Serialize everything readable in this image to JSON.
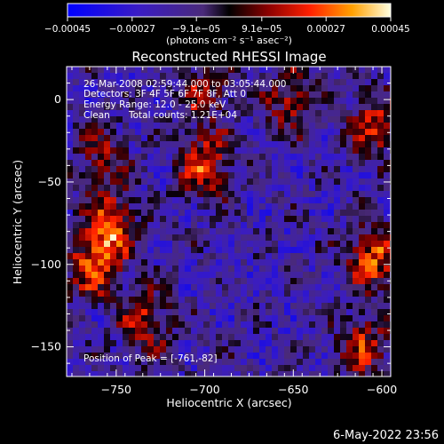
{
  "chart_data": {
    "type": "heatmap",
    "title": "Reconstructed RHESSI Image",
    "xlabel": "Heliocentric X (arcsec)",
    "ylabel": "Heliocentric Y (arcsec)",
    "xlim": [
      -778,
      -595
    ],
    "ylim": [
      -168,
      20
    ],
    "x_ticks": [
      -750,
      -700,
      -650,
      -600
    ],
    "x_tick_labels": [
      "−750",
      "−700",
      "−650",
      "−600"
    ],
    "y_ticks": [
      0,
      -50,
      -100,
      -150
    ],
    "y_tick_labels": [
      "0",
      "−50",
      "−100",
      "−150"
    ],
    "colorbar": {
      "range": [
        -0.00045,
        0.00045
      ],
      "ticks": [
        -0.00045,
        -0.00027,
        -9.1e-05,
        9.1e-05,
        0.00027,
        0.00045
      ],
      "tick_labels": [
        "−0.00045",
        "−0.00027",
        "−9.1e−05",
        "9.1e−05",
        "0.00027",
        "0.00045"
      ],
      "unit_label": "(photons cm⁻² s⁻¹ asec⁻²)"
    },
    "annotations": {
      "time_range": "26-Mar-2008 02:59:44.000 to 03:05:44.000",
      "detectors": "Detectors: 3F 4F 5F 6F 7F 8F, Att 0",
      "energy": "Energy Range: 12.0 - 25.0 keV",
      "method": "Clean",
      "counts": "Total counts: 1.21E+04",
      "peak": "Position of Peak = [-761,-82]"
    },
    "sources": [
      {
        "x": -753,
        "y": -78,
        "amplitude": 0.00042
      },
      {
        "x": -764,
        "y": -102,
        "amplitude": 0.00035
      },
      {
        "x": -700,
        "y": -40,
        "amplitude": 0.00038
      },
      {
        "x": -757,
        "y": -36,
        "amplitude": 0.00025
      },
      {
        "x": -733,
        "y": -135,
        "amplitude": 0.0003
      },
      {
        "x": -605,
        "y": -95,
        "amplitude": 0.0004
      },
      {
        "x": -610,
        "y": -150,
        "amplitude": 0.0003
      },
      {
        "x": -605,
        "y": -15,
        "amplitude": 0.00033
      },
      {
        "x": -652,
        "y": 0,
        "amplitude": 0.00028
      },
      {
        "x": -700,
        "y": 5,
        "amplitude": 0.00025
      }
    ]
  },
  "footer": {
    "timestamp": "6-May-2022 23:56"
  }
}
